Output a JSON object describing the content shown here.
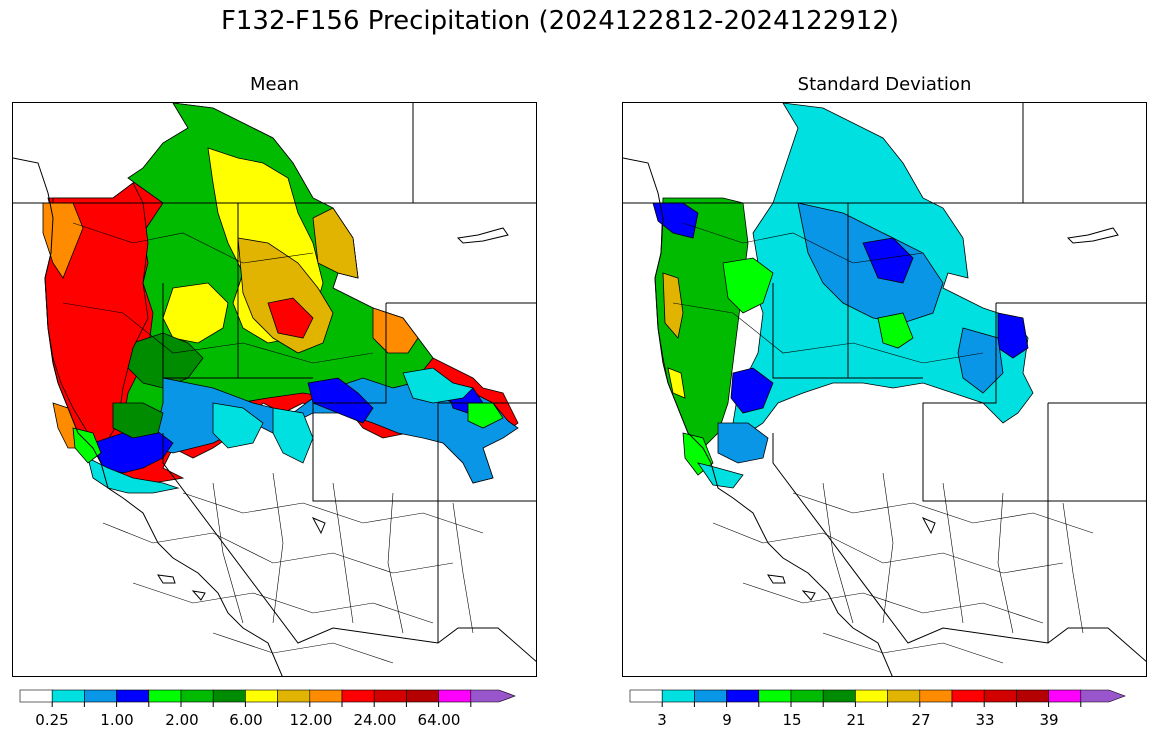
{
  "title": "F132-F156 Precipitation (2024122812-2024122912)",
  "panels": [
    {
      "id": "mean",
      "title": "Mean",
      "colorbar": {
        "tick_labels": [
          "0.25",
          "1.00",
          "2.00",
          "6.00",
          "12.00",
          "24.00",
          "64.00"
        ]
      }
    },
    {
      "id": "std",
      "title": "Standard Deviation",
      "colorbar": {
        "tick_labels": [
          "3",
          "9",
          "15",
          "21",
          "27",
          "33",
          "39"
        ]
      }
    }
  ],
  "colors": {
    "palette": [
      "#ffffff",
      "#00e0e0",
      "#0a96e6",
      "#0000ff",
      "#00ff00",
      "#00bb00",
      "#008c00",
      "#ffff00",
      "#e0b400",
      "#ff8c00",
      "#ff0000",
      "#d20000",
      "#b40000",
      "#ff00ff",
      "#9955cc"
    ],
    "boundary": "#000000"
  }
}
